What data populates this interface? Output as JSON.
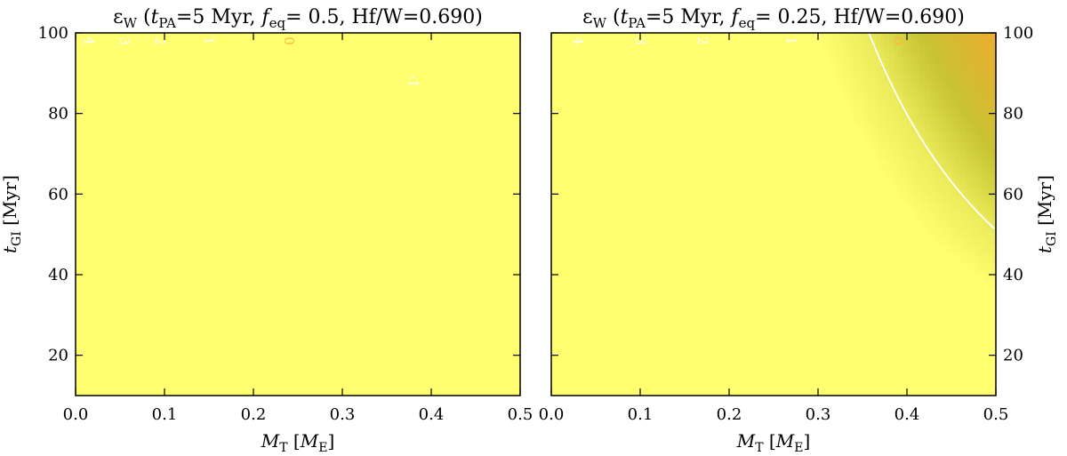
{
  "chart_data": [
    {
      "type": "heatmap",
      "title_parts": {
        "symbol": "ε",
        "symbol_sub": "W",
        "t": "t",
        "t_sub": "PA",
        "tpa": "=5 Myr, ",
        "f": "f",
        "f_sub": "eq",
        "feq": "= 0.5, ",
        "hfw": "Hf/W=0.690)"
      },
      "xlabel_parts": {
        "m": "M",
        "m_sub": "T",
        "unit_open": " [",
        "unit_m": "M",
        "unit_sub": "E",
        "unit_close": "]"
      },
      "ylabel_parts": {
        "t": "t",
        "t_sub": "GI",
        "unit": " [Myr]"
      },
      "xlim": [
        0.0,
        0.5
      ],
      "ylim": [
        10,
        100
      ],
      "x_ticks": [
        "0.0",
        "0.1",
        "0.2",
        "0.3",
        "0.4",
        "0.5"
      ],
      "y_ticks": [
        "20",
        "40",
        "60",
        "80",
        "100"
      ],
      "feq": 0.5,
      "contours": [
        {
          "level": "4",
          "color": "#ffffff",
          "label_pos": [
            0.015,
            98
          ]
        },
        {
          "level": "3",
          "color": "#ffffff",
          "label_pos": [
            0.055,
            98
          ]
        },
        {
          "level": "2",
          "color": "#ffffff",
          "label_pos": [
            0.095,
            98
          ]
        },
        {
          "level": "1",
          "color": "#ffffff",
          "label_pos": [
            0.15,
            98
          ]
        },
        {
          "level": "0",
          "color": "#ffb347",
          "label_pos": [
            0.24,
            98
          ]
        },
        {
          "level": "-1",
          "color": "#ffffff",
          "label_pos": [
            0.38,
            88
          ]
        }
      ]
    },
    {
      "type": "heatmap",
      "title_parts": {
        "symbol": "ε",
        "symbol_sub": "W",
        "t": "t",
        "t_sub": "PA",
        "tpa": "=5 Myr, ",
        "f": "f",
        "f_sub": "eq",
        "feq": "= 0.25, ",
        "hfw": "Hf/W=0.690)"
      },
      "xlabel_parts": {
        "m": "M",
        "m_sub": "T",
        "unit_open": " [",
        "unit_m": "M",
        "unit_sub": "E",
        "unit_close": "]"
      },
      "ylabel_parts": {
        "t": "t",
        "t_sub": "GI",
        "unit": " [Myr]"
      },
      "xlim": [
        0.0,
        0.5
      ],
      "ylim": [
        10,
        100
      ],
      "x_ticks": [
        "0.0",
        "0.1",
        "0.2",
        "0.3",
        "0.4",
        "0.5"
      ],
      "y_ticks": [
        "20",
        "40",
        "60",
        "80",
        "100"
      ],
      "feq": 0.25,
      "contours": [
        {
          "level": "4",
          "color": "#ffffff",
          "label_pos": [
            0.03,
            98
          ]
        },
        {
          "level": "3",
          "color": "#ffffff",
          "label_pos": [
            0.1,
            98
          ]
        },
        {
          "level": "2",
          "color": "#ffffff",
          "label_pos": [
            0.17,
            98
          ]
        },
        {
          "level": "1",
          "color": "#ffffff",
          "label_pos": [
            0.27,
            98
          ]
        },
        {
          "level": "0",
          "color": "#ffb347",
          "label_pos": [
            0.39,
            98
          ]
        }
      ]
    }
  ],
  "colormap": [
    "#ffff70",
    "#ecec5c",
    "#c8c432",
    "#e8b030",
    "#ffa040",
    "#ff7a20",
    "#ff3010",
    "#e00000",
    "#9a0010",
    "#5a0050",
    "#3a10a0",
    "#2020ff",
    "#0010a0",
    "#00004a"
  ]
}
